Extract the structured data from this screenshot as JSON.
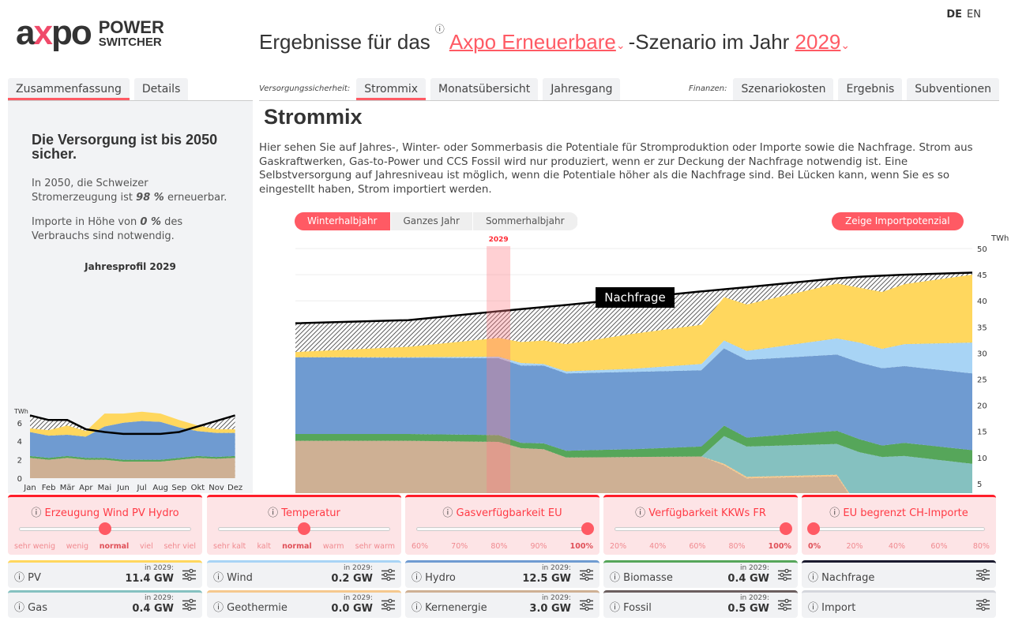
{
  "header": {
    "logo_word": "axpo",
    "logo_line1": "POWER",
    "logo_line2": "SWITCHER",
    "lang_de": "DE",
    "lang_en": "EN",
    "title_prefix": "Ergebnisse für das",
    "scenario": "Axpo Erneuerbare",
    "title_mid": "-Szenario im Jahr",
    "year": "2029",
    "info_icon": "ⓘ",
    "chevron": "⌄"
  },
  "left": {
    "tabs": [
      "Zusammenfassung",
      "Details"
    ],
    "headline": "Die Versorgung ist bis 2050 sicher.",
    "p1_a": "In 2050, die Schweizer Stromerzeugung ist ",
    "p1_b": "98 %",
    "p1_c": " erneuerbar.",
    "p2_a": "Importe in Höhe von ",
    "p2_b": "0 %",
    "p2_c": " des Verbrauchs sind notwendig.",
    "profile_title": "Jahresprofil 2029"
  },
  "main": {
    "supply_label": "Versorgungssicherheit:",
    "supply_tabs": [
      "Strommix",
      "Monatsübersicht",
      "Jahresgang"
    ],
    "finance_label": "Finanzen:",
    "finance_tabs": [
      "Szenariokosten",
      "Ergebnis",
      "Subventionen"
    ],
    "heading": "Strommix",
    "description": "Hier sehen Sie auf Jahres-, Winter- oder Sommerbasis die Potentiale für Stromproduktion oder Importe sowie die Nachfrage. Strom aus Gaskraftwerken, Gas-to-Power und CCS Fossil wird nur produziert, wenn er zur Deckung der Nachfrage notwendig ist. Eine Selbstversorgung auf Jahresniveau ist möglich, wenn die Potentiale höher als die Nachfrage sind. Bei Lücken kann, wenn Sie es so eingestellt haben, Strom importiert werden.",
    "period_options": [
      "Winterhalbjahr",
      "Ganzes Jahr",
      "Sommerhalbjahr"
    ],
    "period_selected": "Winterhalbjahr",
    "import_button": "Zeige Importpotenzial"
  },
  "colors": {
    "accent": "#ff5a64",
    "Kernenergie": "#ceb094",
    "Geothermie": "#f5c88e",
    "Gas": "#85c1c0",
    "Biomasse": "#56a65a",
    "Hydro": "#6f9bd1",
    "Wind": "#a8d4f5",
    "PV": "#ffd75e",
    "Nachfrage": "#111111",
    "Fossil": "#6b5e5e",
    "Import": "#d4d6dc"
  },
  "chart_data": [
    {
      "type": "area",
      "title": "Strommix Winterhalbjahr",
      "ylabel": "TWh",
      "ylim": [
        0,
        50
      ],
      "yticks": [
        5,
        10,
        15,
        20,
        25,
        30,
        35,
        40,
        45,
        50
      ],
      "xlim": [
        2020,
        2050
      ],
      "highlight_year": 2029,
      "highlight_label": "2029",
      "annotation": "Nachfrage",
      "x": [
        2020,
        2025,
        2029,
        2030,
        2031,
        2032,
        2035,
        2038,
        2039,
        2040,
        2044,
        2045,
        2046,
        2047,
        2050
      ],
      "series": [
        {
          "name": "Kernenergie",
          "values": [
            13.2,
            13.2,
            13.0,
            11.8,
            11.6,
            10.0,
            10.1,
            10.2,
            8.5,
            6.0,
            6.4,
            0,
            0,
            0,
            0
          ]
        },
        {
          "name": "Geothermie",
          "values": [
            0,
            0,
            0,
            0,
            0,
            0,
            0,
            0,
            0.3,
            0.3,
            0.3,
            0.3,
            0.3,
            0.3,
            0.3
          ]
        },
        {
          "name": "Gas",
          "values": [
            0,
            0,
            0,
            0,
            0,
            0,
            0,
            0,
            5.3,
            5.8,
            5.9,
            10.7,
            9.8,
            10.0,
            8.5
          ]
        },
        {
          "name": "Biomasse",
          "values": [
            1.3,
            1.3,
            1.3,
            1.0,
            1.1,
            1.3,
            1.5,
            1.9,
            2.0,
            1.7,
            2.5,
            2.5,
            2.2,
            2.5,
            2.6
          ]
        },
        {
          "name": "Hydro",
          "values": [
            14.7,
            14.6,
            14.7,
            14.8,
            14.9,
            14.8,
            14.8,
            14.6,
            14.8,
            14.9,
            14.6,
            14.7,
            14.8,
            14.7,
            14.7
          ]
        },
        {
          "name": "Wind",
          "values": [
            0,
            0.1,
            0.3,
            0.5,
            0.3,
            0.4,
            0.6,
            1.2,
            1.5,
            1.7,
            3.1,
            3.8,
            3.7,
            4.2,
            5.9
          ]
        },
        {
          "name": "PV",
          "values": [
            1.0,
            2.0,
            3.6,
            4.0,
            4.5,
            5.2,
            6.7,
            7.5,
            8.3,
            8.9,
            10.5,
            10.5,
            10.9,
            11.5,
            13.0
          ]
        }
      ],
      "demand": {
        "name": "Nachfrage",
        "values": [
          35.7,
          36.3,
          38.0,
          38.4,
          38.8,
          39.2,
          40.5,
          41.8,
          42.2,
          42.6,
          44.3,
          44.6,
          44.8,
          45.0,
          45.4
        ]
      }
    },
    {
      "type": "area",
      "title": "Jahresprofil 2029",
      "ylabel": "TWh",
      "ylim": [
        0,
        7
      ],
      "yticks": [
        0,
        2,
        4,
        6
      ],
      "categories": [
        "Jan",
        "Feb",
        "Mär",
        "Apr",
        "Mai",
        "Jun",
        "Jul",
        "Aug",
        "Sep",
        "Okt",
        "Nov",
        "Dez"
      ],
      "series": [
        {
          "name": "Kernenergie",
          "values": [
            2.2,
            2.0,
            2.2,
            2.0,
            2.0,
            1.8,
            1.8,
            1.8,
            2.0,
            2.2,
            2.1,
            2.2
          ]
        },
        {
          "name": "Biomasse",
          "values": [
            0.2,
            0.2,
            0.2,
            0.2,
            0.2,
            0.2,
            0.2,
            0.2,
            0.2,
            0.2,
            0.2,
            0.2
          ]
        },
        {
          "name": "Hydro",
          "values": [
            2.6,
            2.4,
            2.3,
            2.3,
            3.4,
            4.0,
            4.2,
            4.1,
            3.3,
            2.7,
            2.6,
            2.5
          ]
        },
        {
          "name": "PV",
          "values": [
            0.4,
            0.6,
            1.0,
            0.6,
            1.4,
            1.0,
            1.0,
            0.9,
            0.8,
            0.6,
            0.4,
            0.4
          ]
        }
      ],
      "demand": {
        "name": "Nachfrage",
        "values": [
          6.8,
          6.3,
          6.3,
          5.3,
          5.0,
          4.8,
          4.8,
          4.8,
          5.0,
          5.6,
          6.2,
          6.8
        ]
      }
    }
  ],
  "sliders": [
    {
      "title": "Erzeugung Wind PV Hydro",
      "labels": [
        "sehr wenig",
        "wenig",
        "normal",
        "viel",
        "sehr viel"
      ],
      "selected": 2
    },
    {
      "title": "Temperatur",
      "labels": [
        "sehr kalt",
        "kalt",
        "normal",
        "warm",
        "sehr warm"
      ],
      "selected": 2
    },
    {
      "title": "Gasverfügbarkeit EU",
      "labels": [
        "60%",
        "70%",
        "80%",
        "90%",
        "100%"
      ],
      "selected": 4
    },
    {
      "title": "Verfügbarkeit KKWs FR",
      "labels": [
        "20%",
        "40%",
        "60%",
        "80%",
        "100%"
      ],
      "selected": 4
    },
    {
      "title": "EU begrenzt CH-Importe",
      "labels": [
        "0%",
        "20%",
        "40%",
        "60%",
        "80%"
      ],
      "selected": 0
    }
  ],
  "sources": [
    {
      "name": "PV",
      "year_label": "in 2029:",
      "value": "11.4 GW",
      "color": "#ffd75e"
    },
    {
      "name": "Wind",
      "year_label": "in 2029:",
      "value": "0.2 GW",
      "color": "#a8d4f5"
    },
    {
      "name": "Hydro",
      "year_label": "in 2029:",
      "value": "12.5 GW",
      "color": "#6f9bd1"
    },
    {
      "name": "Biomasse",
      "year_label": "in 2029:",
      "value": "0.4 GW",
      "color": "#56a65a"
    },
    {
      "name": "Nachfrage",
      "color": "#1a1a2e"
    },
    {
      "name": "Gas",
      "year_label": "in 2029:",
      "value": "0.4 GW",
      "color": "#85c1c0"
    },
    {
      "name": "Geothermie",
      "year_label": "in 2029:",
      "value": "0.0 GW",
      "color": "#f5c88e"
    },
    {
      "name": "Kernenergie",
      "year_label": "in 2029:",
      "value": "3.0 GW",
      "color": "#ceb094"
    },
    {
      "name": "Fossil",
      "year_label": "in 2029:",
      "value": "0.5 GW",
      "color": "#6b5e5e"
    },
    {
      "name": "Import",
      "color": "#d4d6dc"
    }
  ]
}
